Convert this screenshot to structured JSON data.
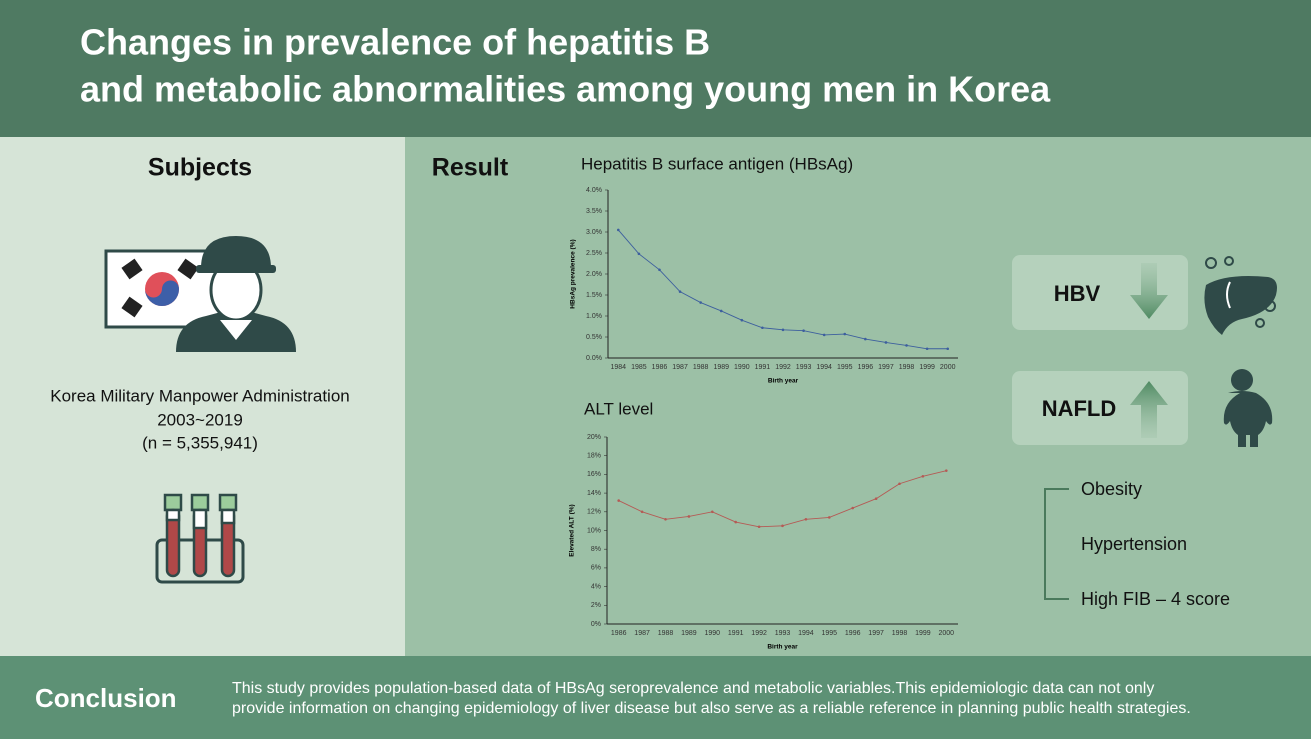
{
  "header": {
    "title_lines": [
      "Changes in prevalence of hepatitis B",
      "and metabolic abnormalities among young men in Korea"
    ]
  },
  "subjects": {
    "heading": "Subjects",
    "lines": [
      "Korea Military Manpower Administration",
      "2003~2019",
      "(n = 5,355,941)"
    ]
  },
  "result": {
    "heading": "Result"
  },
  "chart_data": [
    {
      "type": "line",
      "title": "Hepatitis B surface antigen (HBsAg)",
      "x_label": "Birth year",
      "y_label": "HBsAg prevalence (%)",
      "color": "#3d5f9e",
      "categories": [
        "1984",
        "1985",
        "1986",
        "1987",
        "1988",
        "1989",
        "1990",
        "1991",
        "1992",
        "1993",
        "1994",
        "1995",
        "1996",
        "1997",
        "1998",
        "1999",
        "2000"
      ],
      "values": [
        3.05,
        2.48,
        2.1,
        1.58,
        1.32,
        1.12,
        0.9,
        0.72,
        0.67,
        0.65,
        0.55,
        0.57,
        0.45,
        0.37,
        0.3,
        0.22,
        0.22
      ],
      "ylim": [
        0,
        4
      ],
      "yticks": [
        {
          "value": 0,
          "label": "0.0%"
        },
        {
          "value": 0.5,
          "label": "0.5%"
        },
        {
          "value": 1,
          "label": "1.0%"
        },
        {
          "value": 1.5,
          "label": "1.5%"
        },
        {
          "value": 2,
          "label": "2.0%"
        },
        {
          "value": 2.5,
          "label": "2.5%"
        },
        {
          "value": 3,
          "label": "3.0%"
        },
        {
          "value": 3.5,
          "label": "3.5%"
        },
        {
          "value": 4,
          "label": "4.0%"
        }
      ]
    },
    {
      "type": "line",
      "title": "ALT level",
      "x_label": "Birth year",
      "y_label": "Elevated ALT (%)",
      "color": "#b55a55",
      "categories": [
        "1986",
        "1987",
        "1988",
        "1989",
        "1990",
        "1991",
        "1992",
        "1993",
        "1994",
        "1995",
        "1996",
        "1997",
        "1998",
        "1999",
        "2000"
      ],
      "values": [
        13.2,
        12.0,
        11.2,
        11.5,
        12.0,
        10.9,
        10.4,
        10.5,
        11.2,
        11.4,
        12.4,
        13.4,
        15.0,
        15.8,
        16.4
      ],
      "ylim": [
        0,
        20
      ],
      "yticks": [
        {
          "value": 0,
          "label": "0%"
        },
        {
          "value": 2,
          "label": "2%"
        },
        {
          "value": 4,
          "label": "4%"
        },
        {
          "value": 6,
          "label": "6%"
        },
        {
          "value": 8,
          "label": "8%"
        },
        {
          "value": 10,
          "label": "10%"
        },
        {
          "value": 12,
          "label": "12%"
        },
        {
          "value": 14,
          "label": "14%"
        },
        {
          "value": 16,
          "label": "16%"
        },
        {
          "value": 18,
          "label": "18%"
        },
        {
          "value": 20,
          "label": "20%"
        }
      ]
    }
  ],
  "panel": {
    "hbv": "HBV",
    "nafld": "NAFLD",
    "items": [
      "Obesity",
      "Hypertension",
      "High FIB – 4 score"
    ]
  },
  "conclusion": {
    "heading": "Conclusion",
    "lines": [
      "This study provides population-based data of HBsAg seroprevalence and metabolic variables.This epidemiologic data can not only",
      "provide information on changing epidemiology of liver disease but also serve as a reliable reference in planning public health strategies."
    ]
  }
}
